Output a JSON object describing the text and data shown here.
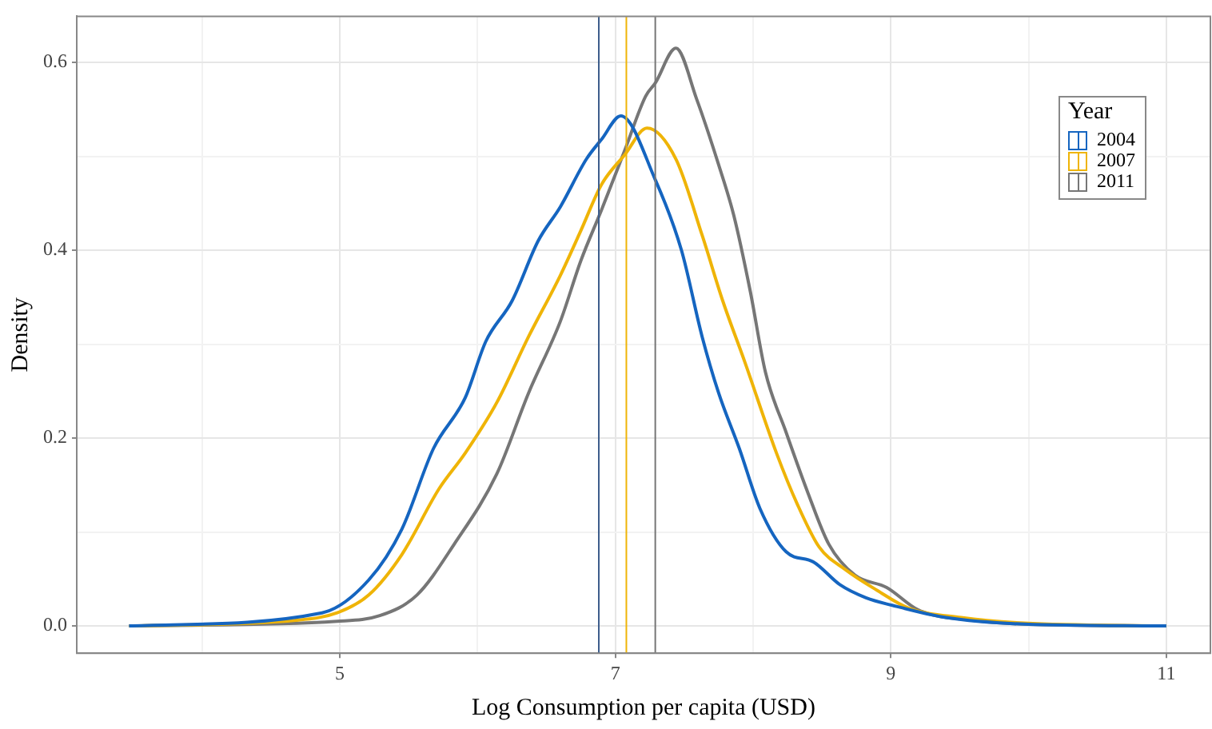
{
  "chart_data": {
    "type": "line",
    "xlabel": "Log Consumption per capita (USD)",
    "ylabel": "Density",
    "legend_title": "Year",
    "legend": "top right",
    "grid": true,
    "xlim": [
      3.09,
      11.32
    ],
    "ylim": [
      -0.029,
      0.649
    ],
    "xticks": [
      {
        "value": 4,
        "label": null
      },
      5,
      {
        "value": 6,
        "label": null
      },
      7,
      {
        "value": 8,
        "label": null
      },
      9,
      {
        "value": 10,
        "label": null
      },
      11
    ],
    "yticks": [
      {
        "value": 0,
        "label": "0.0"
      },
      {
        "value": 0.1,
        "label": null
      },
      {
        "value": 0.2,
        "label": "0.2"
      },
      {
        "value": 0.3,
        "label": null
      },
      {
        "value": 0.4,
        "label": "0.4"
      },
      {
        "value": 0.5,
        "label": null
      },
      {
        "value": 0.6,
        "label": "0.6"
      }
    ],
    "series": [
      {
        "name": "2004",
        "color": "#1565c0",
        "x": [
          3.47,
          4.87,
          5.21,
          5.45,
          5.68,
          5.91,
          6.06,
          6.25,
          6.44,
          6.6,
          6.79,
          6.9,
          7.04,
          7.29,
          7.48,
          7.63,
          7.75,
          7.9,
          8.05,
          8.24,
          8.44,
          8.63,
          8.82,
          9.01,
          9.4,
          9.97,
          11.0
        ],
        "values": [
          0,
          0.014,
          0.049,
          0.103,
          0.189,
          0.243,
          0.303,
          0.346,
          0.41,
          0.446,
          0.497,
          0.518,
          0.543,
          0.475,
          0.4,
          0.308,
          0.248,
          0.189,
          0.125,
          0.079,
          0.068,
          0.044,
          0.03,
          0.022,
          0.009,
          0.002,
          0
        ]
      },
      {
        "name": "2007",
        "color": "#efb407",
        "x": [
          3.47,
          4.68,
          4.98,
          5.21,
          5.45,
          5.72,
          5.91,
          6.14,
          6.37,
          6.6,
          6.75,
          6.9,
          7.07,
          7.23,
          7.44,
          7.63,
          7.78,
          7.94,
          8.17,
          8.32,
          8.48,
          8.67,
          8.9,
          9.13,
          9.51,
          9.97,
          11.0
        ],
        "values": [
          0,
          0.006,
          0.014,
          0.033,
          0.076,
          0.146,
          0.184,
          0.238,
          0.308,
          0.373,
          0.421,
          0.47,
          0.502,
          0.53,
          0.497,
          0.416,
          0.346,
          0.281,
          0.184,
          0.13,
          0.084,
          0.06,
          0.038,
          0.019,
          0.009,
          0.003,
          0
        ]
      },
      {
        "name": "2011",
        "color": "#767676",
        "x": [
          3.47,
          4.98,
          5.29,
          5.56,
          5.83,
          6.14,
          6.37,
          6.6,
          6.75,
          6.9,
          7.07,
          7.22,
          7.29,
          7.44,
          7.59,
          7.75,
          7.86,
          7.98,
          8.09,
          8.24,
          8.4,
          8.55,
          8.74,
          8.97,
          9.2,
          9.59,
          9.97,
          11.0
        ],
        "values": [
          0,
          0.005,
          0.011,
          0.033,
          0.087,
          0.162,
          0.248,
          0.324,
          0.389,
          0.443,
          0.507,
          0.564,
          0.578,
          0.615,
          0.561,
          0.491,
          0.437,
          0.356,
          0.27,
          0.206,
          0.141,
          0.087,
          0.054,
          0.041,
          0.017,
          0.006,
          0.002,
          0
        ]
      }
    ],
    "ref_lines": [
      {
        "axis": "x",
        "value": 6.88,
        "color": "#3e5e8c"
      },
      {
        "axis": "x",
        "value": 7.08,
        "color": "#efb407"
      },
      {
        "axis": "x",
        "value": 7.29,
        "color": "#767676"
      }
    ]
  }
}
